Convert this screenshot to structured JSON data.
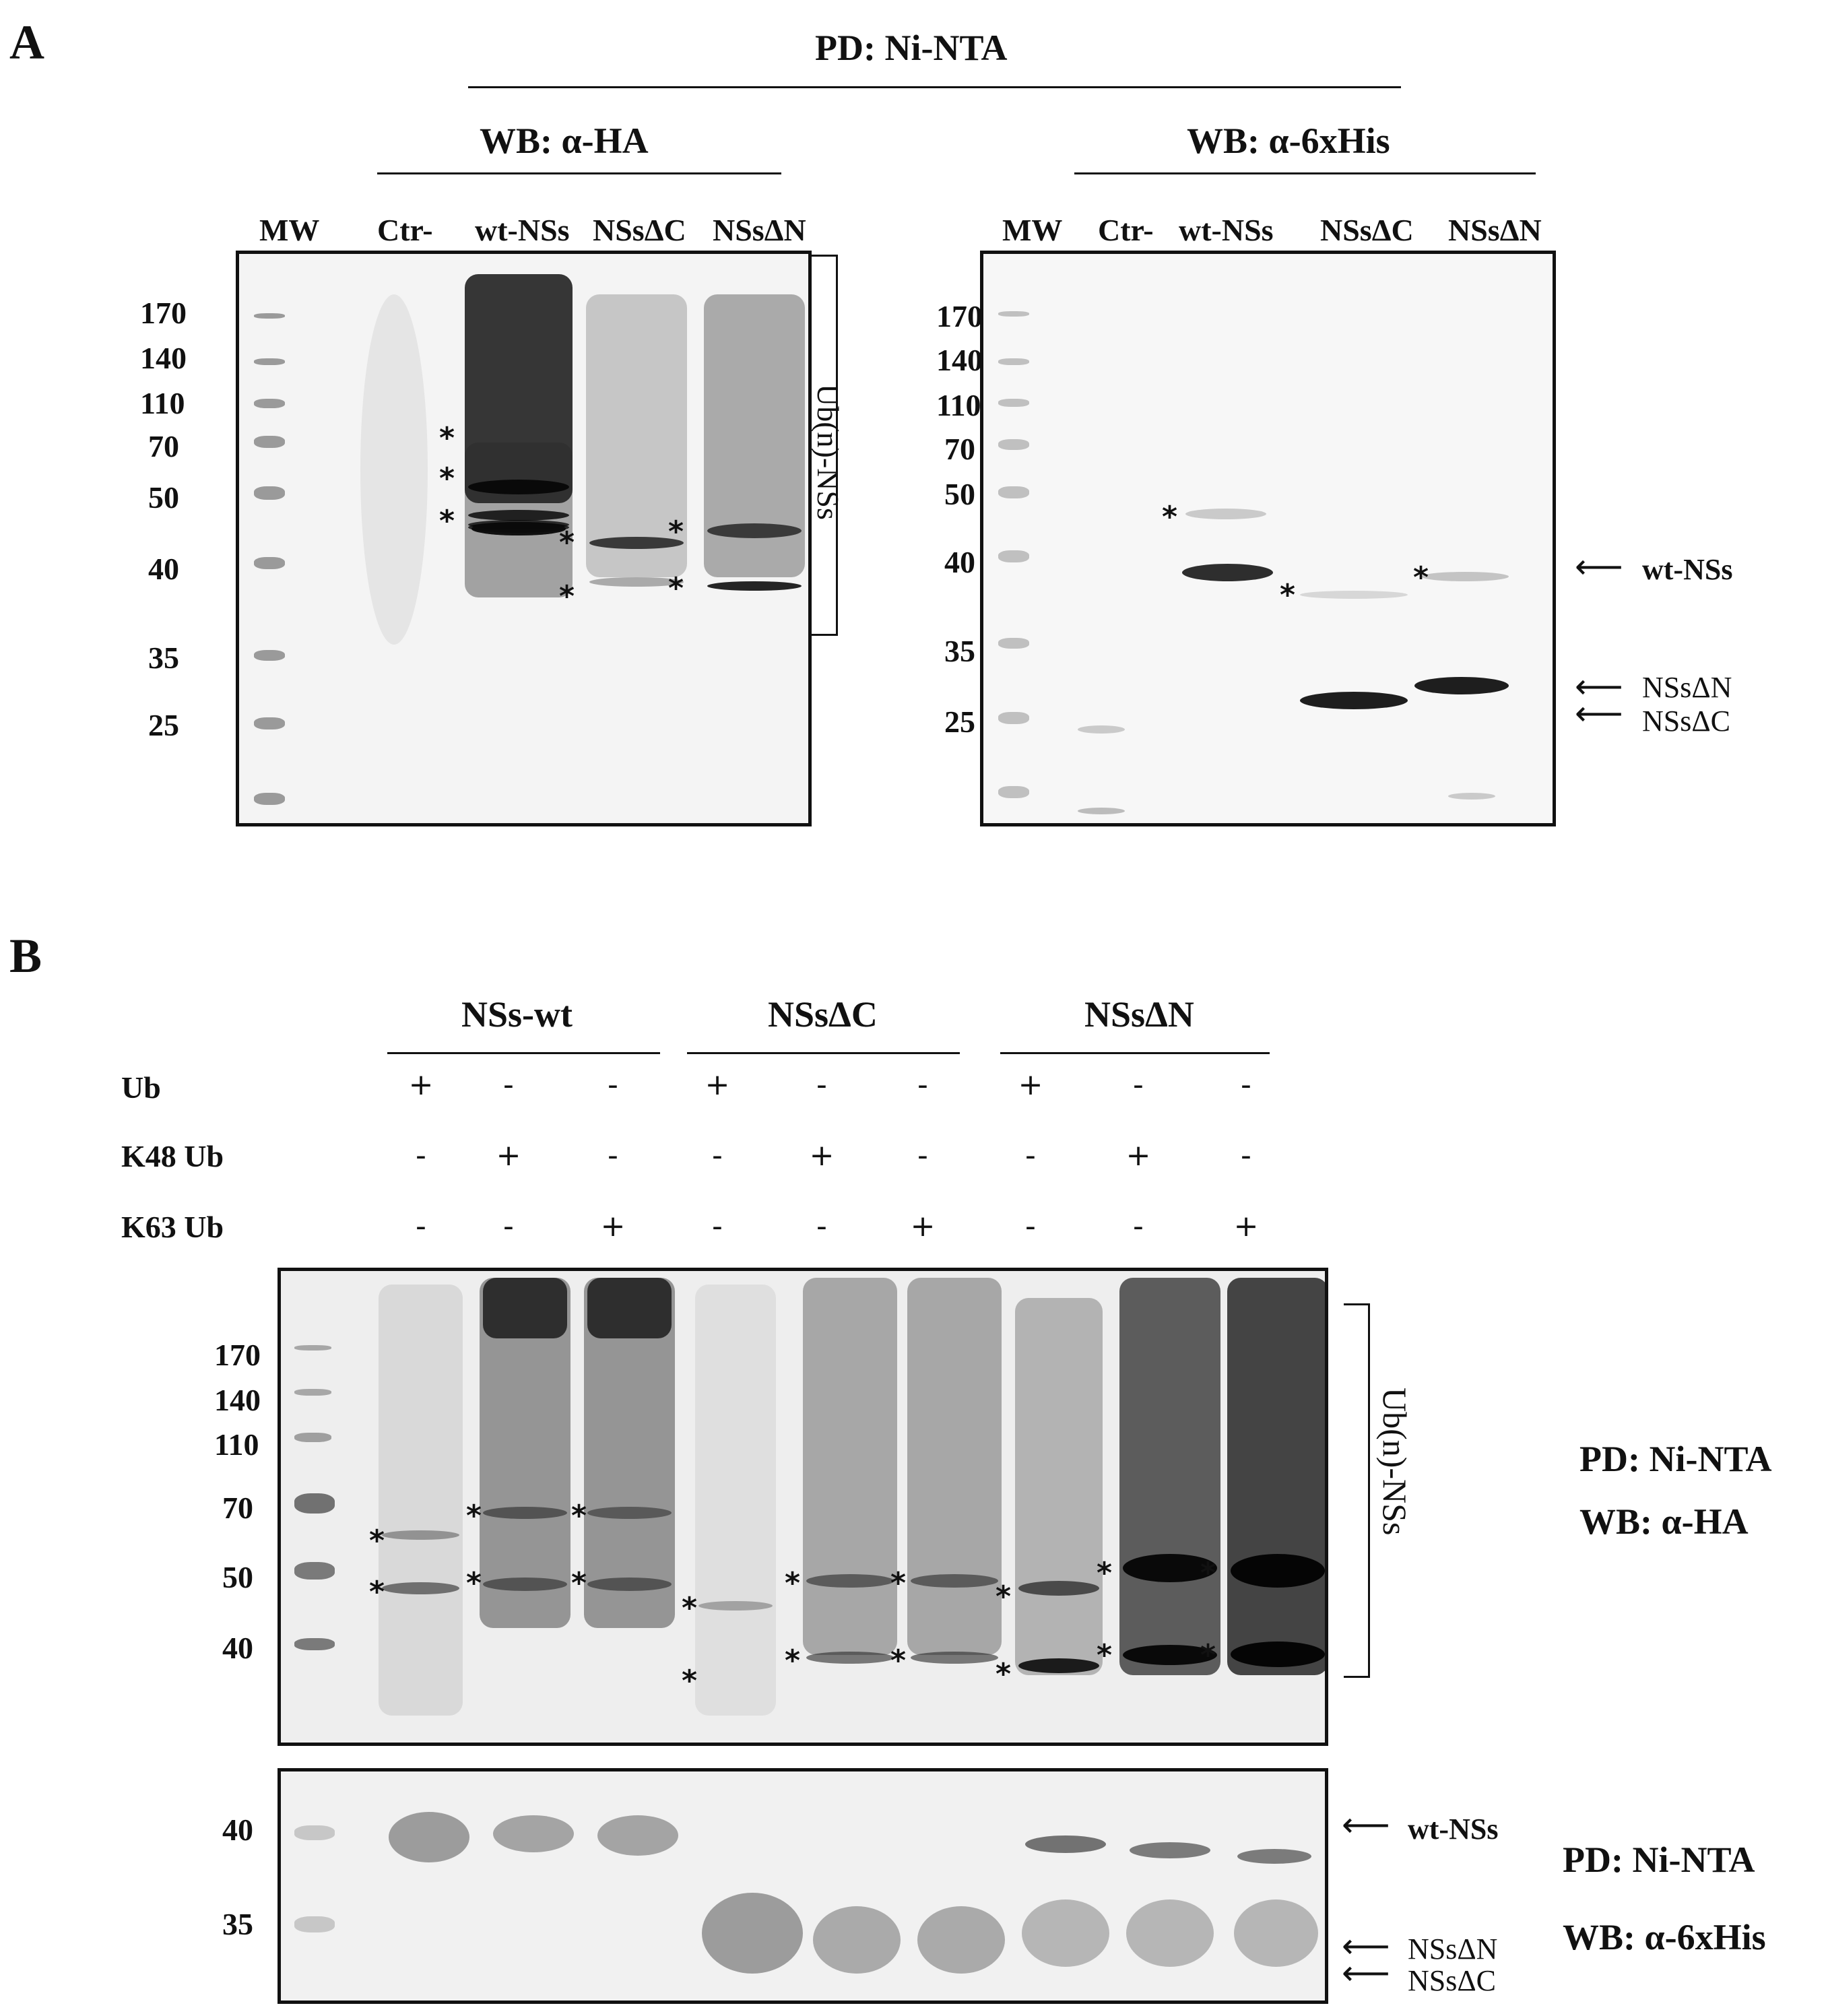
{
  "panelA": {
    "letter": "A",
    "pd_title": "PD: Ni-NTA",
    "left": {
      "wb_title": "WB: α-HA",
      "lanes": [
        "MW",
        "Ctr-",
        "wt-NSs",
        "NSsΔC",
        "NSsΔN"
      ],
      "mw": [
        "170",
        "140",
        "110",
        "70",
        "50",
        "40",
        "35",
        "25"
      ],
      "bracket_label": "Ub(n)-NSs",
      "star": "*"
    },
    "right": {
      "wb_title": "WB: α-6xHis",
      "lanes": [
        "MW",
        "Ctr-",
        "wt-NSs",
        "NSsΔC",
        "NSsΔN"
      ],
      "mw": [
        "170",
        "140",
        "110",
        "70",
        "50",
        "40",
        "35",
        "25"
      ],
      "arrow_labels": [
        "wt-NSs",
        "NSsΔN",
        "NSsΔC"
      ]
    }
  },
  "panelB": {
    "letter": "B",
    "groups": [
      "NSs-wt",
      "NSsΔC",
      "NSsΔN"
    ],
    "rows": [
      {
        "label": "Ub",
        "signs": [
          "+",
          "-",
          "-",
          "+",
          "-",
          "-",
          "+",
          "-",
          "-"
        ]
      },
      {
        "label": "K48 Ub",
        "signs": [
          "-",
          "+",
          "-",
          "-",
          "+",
          "-",
          "-",
          "+",
          "-"
        ]
      },
      {
        "label": "K63 Ub",
        "signs": [
          "-",
          "-",
          "+",
          "-",
          "-",
          "+",
          "-",
          "-",
          "+"
        ]
      }
    ],
    "top_blot": {
      "mw": [
        "170",
        "140",
        "110",
        "70",
        "50",
        "40"
      ],
      "bracket_label": "Ub(n)-NSs",
      "side_label_1": "PD: Ni-NTA",
      "side_label_2": "WB: α-HA"
    },
    "bottom_blot": {
      "mw": [
        "40",
        "35"
      ],
      "arrow_labels": [
        "wt-NSs",
        "NSsΔN",
        "NSsΔC"
      ],
      "side_label_1": "PD: Ni-NTA",
      "side_label_2": "WB: α-6xHis"
    }
  }
}
